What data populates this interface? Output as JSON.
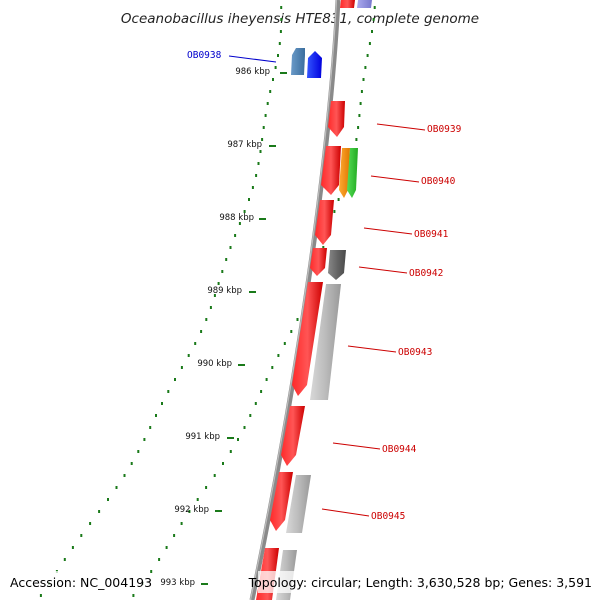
{
  "title": "Oceanobacillus iheyensis HTE831, complete genome",
  "footer": {
    "accession": "Accession: NC_004193",
    "topology": "Topology: circular; Length: 3,630,528 bp; Genes: 3,591"
  },
  "colors": {
    "label_red": "#cc0000",
    "label_blue": "#0000cc",
    "gc_green": "#1a7a1a",
    "backbone": "#888888"
  },
  "kbp_ticks": [
    "986 kbp",
    "987 kbp",
    "988 kbp",
    "989 kbp",
    "990 kbp",
    "991 kbp",
    "992 kbp",
    "993 kbp"
  ],
  "gene_labels": [
    {
      "name": "OB0938",
      "color": "blue"
    },
    {
      "name": "OB0939",
      "color": "red"
    },
    {
      "name": "OB0940",
      "color": "red"
    },
    {
      "name": "OB0941",
      "color": "red"
    },
    {
      "name": "OB0942",
      "color": "red"
    },
    {
      "name": "OB0943",
      "color": "red"
    },
    {
      "name": "OB0944",
      "color": "red"
    },
    {
      "name": "OB0945",
      "color": "red"
    }
  ]
}
